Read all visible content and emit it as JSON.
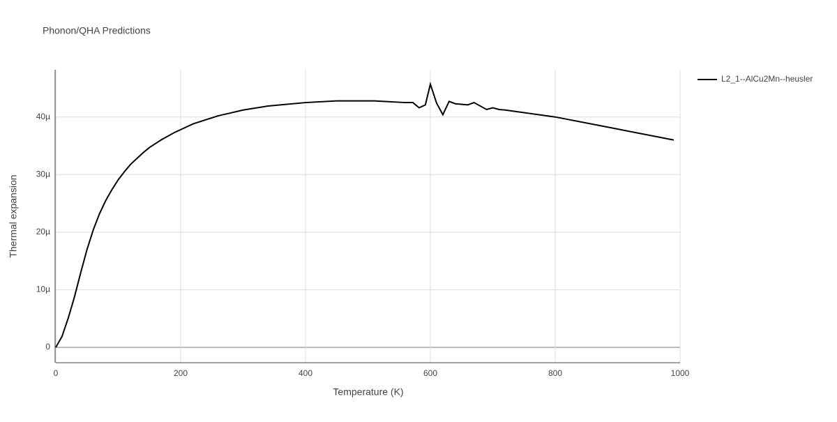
{
  "chart_data": {
    "type": "line",
    "title": "Phonon/QHA Predictions",
    "x_label": "Temperature (K)",
    "y_label": "Thermal expansion",
    "xlim": [
      0,
      1000
    ],
    "ylim": [
      -2.67e-06,
      4.82e-05
    ],
    "xticks": [
      0,
      200,
      400,
      600,
      800,
      1000
    ],
    "yticks": [
      0,
      {
        "value": 1e-05,
        "label": "10µ"
      },
      {
        "value": 2e-05,
        "label": "20µ"
      },
      {
        "value": 3e-05,
        "label": "30µ"
      },
      {
        "value": 4e-05,
        "label": "40µ"
      }
    ],
    "grid": true,
    "legend_position": "top-right",
    "series": [
      {
        "name": "L2_1--AlCu2Mn--heusler",
        "color": "#000000",
        "x": [
          0,
          10,
          20,
          30,
          40,
          50,
          60,
          70,
          80,
          90,
          100,
          110,
          120,
          130,
          140,
          150,
          160,
          170,
          180,
          190,
          200,
          220,
          240,
          260,
          280,
          300,
          340,
          400,
          450,
          510,
          560,
          572,
          582,
          592,
          600,
          610,
          620,
          630,
          640,
          660,
          670,
          690,
          700,
          710,
          720,
          800,
          900,
          990
        ],
        "values": [
          0,
          1.9e-06,
          5.1e-06,
          8.8e-06,
          1.3e-05,
          1.7e-05,
          2.04e-05,
          2.32e-05,
          2.55e-05,
          2.74e-05,
          2.91e-05,
          3.05e-05,
          3.18e-05,
          3.28e-05,
          3.38e-05,
          3.47e-05,
          3.54e-05,
          3.61e-05,
          3.67e-05,
          3.73e-05,
          3.78e-05,
          3.88e-05,
          3.95e-05,
          4.02e-05,
          4.07e-05,
          4.12e-05,
          4.19e-05,
          4.25e-05,
          4.28e-05,
          4.28e-05,
          4.25e-05,
          4.25e-05,
          4.16e-05,
          4.21e-05,
          4.57e-05,
          4.24e-05,
          4.04e-05,
          4.27e-05,
          4.23e-05,
          4.21e-05,
          4.25e-05,
          4.13e-05,
          4.16e-05,
          4.13e-05,
          4.12e-05,
          4e-05,
          3.79e-05,
          3.6e-05
        ]
      }
    ]
  }
}
